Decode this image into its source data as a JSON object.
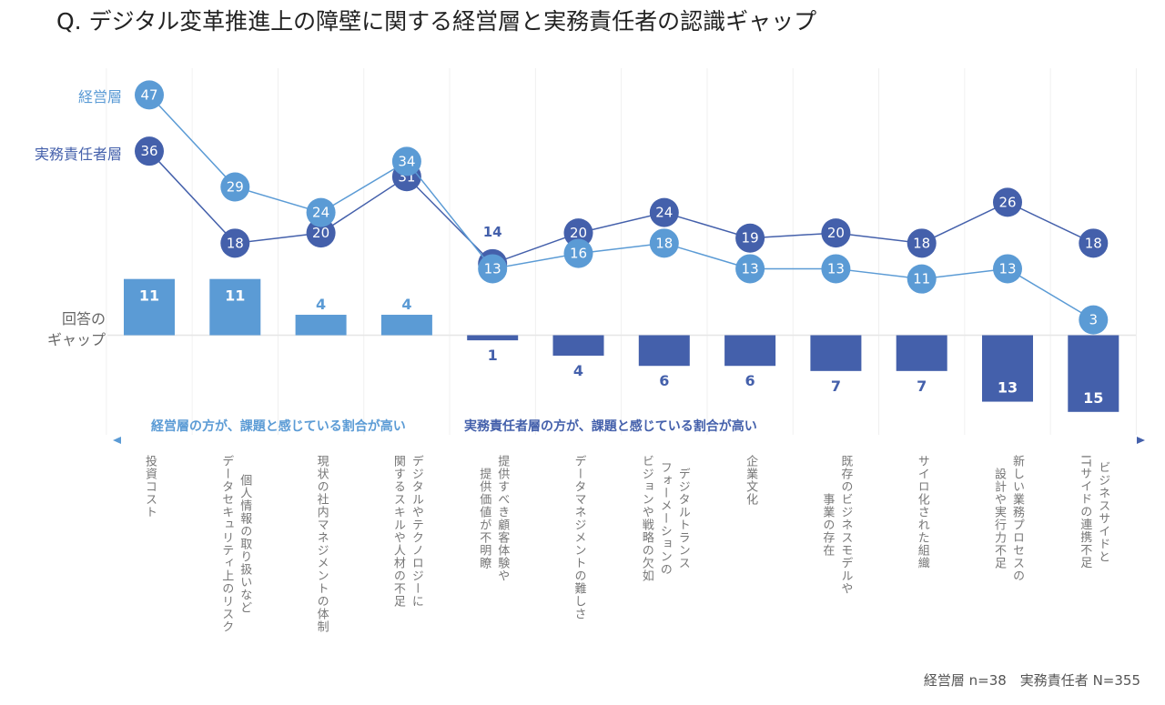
{
  "title": "Q. デジタル変革推進上の障壁に関する経営層と実務責任者の認識ギャップ",
  "footer": "経営層 n=38　実務責任者 N=355",
  "colors": {
    "management": "#5b9bd5",
    "staff": "#4460ab"
  },
  "side_labels": {
    "management": "経営層",
    "staff": "実務責任者層",
    "gap": "回答の\nギャップ"
  },
  "notes": {
    "left": "経営層の方が、課題と感じている割合が高い",
    "right": "実務責任者層の方が、課題と感じている割合が高い"
  },
  "chart_data": {
    "type": "line",
    "title": "Q. デジタル変革推進上の障壁に関する経営層と実務責任者の認識ギャップ",
    "categories": [
      "投資コスト",
      "個人情報の取り扱いなど\nデータセキュリティ上のリスク",
      "現状の社内マネジメントの体制",
      "デジタルやテクノロジーに\n関するスキルや人材の不足",
      "提供すべき顧客体験や\n提供価値が不明瞭",
      "データマネジメントの難しさ",
      "デジタルトランス\nフォーメーションの\nビジョンや戦略の欠如",
      "企業文化",
      "既存のビジネスモデルや\n事業の存在",
      "サイロ化された組織",
      "新しい業務プロセスの\n設計や実行力不足",
      "ビジネスサイドと\nITサイドの連携不足"
    ],
    "series": [
      {
        "name": "経営層",
        "values": [
          47,
          29,
          24,
          34,
          13,
          16,
          18,
          13,
          13,
          11,
          13,
          3
        ]
      },
      {
        "name": "実務責任者層",
        "values": [
          36,
          18,
          20,
          31,
          14,
          20,
          24,
          19,
          20,
          18,
          26,
          18
        ]
      }
    ],
    "gap": {
      "name": "回答のギャップ",
      "type": "bar",
      "values": [
        11,
        11,
        4,
        4,
        -1,
        -4,
        -6,
        -6,
        -7,
        -7,
        -13,
        -15
      ]
    },
    "grid": "vertical",
    "legend": "left"
  }
}
